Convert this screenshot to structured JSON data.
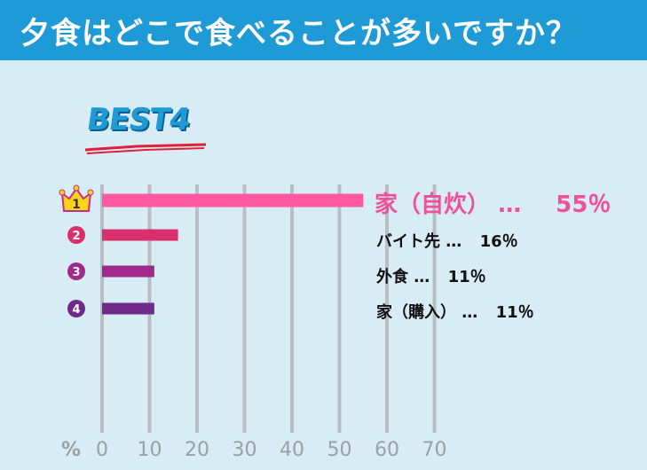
{
  "header": {
    "title": "夕食はどこで食べることが多いですか？"
  },
  "badge": {
    "text": "BEST4"
  },
  "colors": {
    "header_bg": "#1e9ad6",
    "background": "#d8ecf5",
    "rank1": "#ff5aa0",
    "rank2": "#d8306a",
    "rank3": "#a02a8c",
    "rank4": "#6f2a8a"
  },
  "chart_data": {
    "type": "bar",
    "orientation": "horizontal",
    "categories": [
      "家（自炊）",
      "バイト先",
      "外食",
      "家（購入）"
    ],
    "values": [
      55,
      16,
      11,
      11
    ],
    "value_labels": [
      "55％",
      "16％",
      "11％",
      "11％"
    ],
    "ranks": [
      "1",
      "2",
      "3",
      "4"
    ],
    "separator": "…",
    "xlabel": "%",
    "xlim": [
      0,
      70
    ],
    "x_ticks": [
      0,
      10,
      20,
      30,
      40,
      50,
      60,
      70
    ],
    "grid": true
  }
}
